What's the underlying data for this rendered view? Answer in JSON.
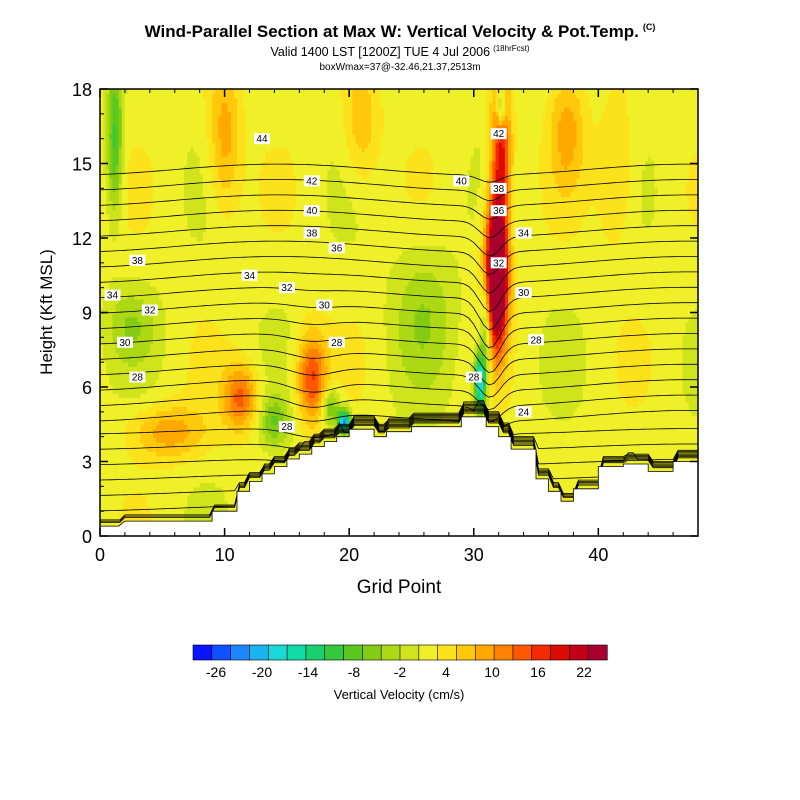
{
  "header": {
    "title": "Wind-Parallel Section at Max W: Vertical Velocity & Pot.Temp.",
    "title_mark": "(C)",
    "subtitle": "Valid 1400 LST [1200Z] TUE 4 Jul 2006",
    "subtitle_mark": "(18hrFcst)",
    "subtitle2": "boxWmax=37@-32.46,21.37,2513m"
  },
  "chart_data": {
    "type": "heatmap",
    "xlabel": "Grid Point",
    "ylabel": "Height (Kft MSL)",
    "xlim": [
      0,
      48
    ],
    "ylim": [
      0,
      18
    ],
    "xticks": [
      0,
      10,
      20,
      30,
      40
    ],
    "yticks": [
      0,
      3,
      6,
      9,
      12,
      15,
      18
    ],
    "terrain": {
      "x": [
        0,
        1.5,
        2,
        9,
        9,
        11,
        11,
        12,
        12,
        13,
        13,
        14,
        14,
        15,
        15,
        16,
        16,
        17,
        17,
        18,
        18,
        19,
        19,
        20,
        20,
        22,
        22,
        23,
        23,
        25,
        25,
        29,
        29,
        31,
        31,
        32,
        32,
        33,
        33,
        35,
        35,
        36,
        36,
        37,
        37,
        38,
        38,
        40,
        40,
        42,
        42,
        44,
        44,
        46,
        46,
        48
      ],
      "y": [
        0.4,
        0.4,
        0.6,
        0.6,
        1.0,
        1.0,
        1.8,
        1.8,
        2.2,
        2.2,
        2.5,
        2.5,
        2.8,
        2.8,
        3.1,
        3.1,
        3.3,
        3.3,
        3.6,
        3.6,
        3.8,
        3.8,
        4.0,
        4.0,
        4.3,
        4.3,
        4.0,
        4.0,
        4.2,
        4.2,
        4.4,
        4.4,
        4.8,
        4.8,
        4.4,
        4.4,
        4.0,
        4.0,
        3.5,
        3.5,
        2.3,
        2.3,
        1.8,
        1.8,
        1.4,
        1.4,
        1.9,
        1.9,
        2.8,
        2.8,
        2.9,
        2.9,
        2.6,
        2.6,
        3.0,
        3.0
      ]
    },
    "w_features": [
      {
        "kind": "updraft",
        "x": 31.8,
        "y": 10.5,
        "sx": 0.9,
        "sy": 2.8,
        "value": 37
      },
      {
        "kind": "updraft",
        "x": 32.2,
        "y": 15.5,
        "sx": 0.8,
        "sy": 3.0,
        "value": 18
      },
      {
        "kind": "updraft",
        "x": 17.0,
        "y": 6.4,
        "sx": 1.2,
        "sy": 1.8,
        "value": 14
      },
      {
        "kind": "updraft",
        "x": 11.3,
        "y": 5.6,
        "sx": 1.4,
        "sy": 1.3,
        "value": 12
      },
      {
        "kind": "updraft",
        "x": 5.5,
        "y": 4.2,
        "sx": 3.0,
        "sy": 1.1,
        "value": 8
      },
      {
        "kind": "updraft",
        "x": 10.0,
        "y": 16.0,
        "sx": 1.3,
        "sy": 3.0,
        "value": 8
      },
      {
        "kind": "updraft",
        "x": 21.0,
        "y": 16.5,
        "sx": 1.4,
        "sy": 2.5,
        "value": 6
      },
      {
        "kind": "updraft",
        "x": 37.5,
        "y": 16.5,
        "sx": 1.4,
        "sy": 2.5,
        "value": 7
      },
      {
        "kind": "updraft",
        "x": 41.5,
        "y": 14.5,
        "sx": 1.5,
        "sy": 3.0,
        "value": 5
      },
      {
        "kind": "downdraft",
        "x": 30.5,
        "y": 6.2,
        "sx": 0.45,
        "sy": 1.2,
        "value": -22
      },
      {
        "kind": "downdraft",
        "x": 31.0,
        "y": 8.5,
        "sx": 0.5,
        "sy": 2.2,
        "value": -12
      },
      {
        "kind": "downdraft",
        "x": 32.2,
        "y": 17.3,
        "sx": 0.4,
        "sy": 1.0,
        "value": -14
      },
      {
        "kind": "downdraft",
        "x": 19.6,
        "y": 4.6,
        "sx": 0.5,
        "sy": 0.5,
        "value": -24
      },
      {
        "kind": "downdraft",
        "x": 18.5,
        "y": 5.2,
        "sx": 0.7,
        "sy": 0.8,
        "value": -10
      },
      {
        "kind": "downdraft",
        "x": 1.2,
        "y": 16.0,
        "sx": 0.6,
        "sy": 3.0,
        "value": -12
      },
      {
        "kind": "downdraft",
        "x": 14.0,
        "y": 4.6,
        "sx": 1.2,
        "sy": 1.0,
        "value": -8
      },
      {
        "kind": "downdraft",
        "x": 2.5,
        "y": 8.5,
        "sx": 2.0,
        "sy": 1.5,
        "value": -5
      },
      {
        "kind": "downdraft",
        "x": 26.0,
        "y": 9.0,
        "sx": 2.5,
        "sy": 3.0,
        "value": -5
      }
    ],
    "theta_levels": [
      22,
      23,
      24,
      25,
      26,
      27,
      28,
      29,
      30,
      31,
      32,
      33,
      34,
      35,
      36,
      37,
      38,
      39,
      40,
      41,
      42,
      43,
      44,
      45,
      46,
      47
    ],
    "theta_labels": [
      {
        "text": "44",
        "x": 13,
        "y": 16.0
      },
      {
        "text": "42",
        "x": 17,
        "y": 14.3
      },
      {
        "text": "40",
        "x": 17,
        "y": 13.1
      },
      {
        "text": "38",
        "x": 17,
        "y": 12.2
      },
      {
        "text": "36",
        "x": 19,
        "y": 11.6
      },
      {
        "text": "34",
        "x": 12,
        "y": 10.5
      },
      {
        "text": "32",
        "x": 15,
        "y": 10.0
      },
      {
        "text": "30",
        "x": 18,
        "y": 9.3
      },
      {
        "text": "28",
        "x": 19,
        "y": 7.8
      },
      {
        "text": "28",
        "x": 15,
        "y": 4.4
      },
      {
        "text": "38",
        "x": 3,
        "y": 11.1
      },
      {
        "text": "34",
        "x": 1,
        "y": 9.7
      },
      {
        "text": "32",
        "x": 4,
        "y": 9.1
      },
      {
        "text": "30",
        "x": 2,
        "y": 7.8
      },
      {
        "text": "28",
        "x": 3,
        "y": 6.4
      },
      {
        "text": "42",
        "x": 32,
        "y": 16.2
      },
      {
        "text": "40",
        "x": 29,
        "y": 14.3
      },
      {
        "text": "38",
        "x": 32,
        "y": 14.0
      },
      {
        "text": "36",
        "x": 32,
        "y": 13.1
      },
      {
        "text": "34",
        "x": 34,
        "y": 12.2
      },
      {
        "text": "32",
        "x": 32,
        "y": 11.0
      },
      {
        "text": "30",
        "x": 34,
        "y": 9.8
      },
      {
        "text": "28",
        "x": 35,
        "y": 7.9
      },
      {
        "text": "28",
        "x": 30,
        "y": 6.4
      },
      {
        "text": "24",
        "x": 34,
        "y": 5.0
      }
    ],
    "colorbar": {
      "label": "Vertical Velocity (cm/s)",
      "colors": [
        "#0a14ff",
        "#1050ff",
        "#1c86ff",
        "#1ab4f0",
        "#1ad8d8",
        "#10dca8",
        "#18d070",
        "#34c83c",
        "#5ac81e",
        "#84cc14",
        "#acd814",
        "#d0e41c",
        "#f0f028",
        "#fbe21a",
        "#ffc80a",
        "#ffa800",
        "#ff8200",
        "#ff5800",
        "#f22c00",
        "#dc0a00",
        "#c00018",
        "#aa0030"
      ],
      "tick_labels": [
        "-26",
        "-20",
        "-14",
        "-8",
        "-2",
        "4",
        "10",
        "16",
        "22"
      ],
      "tick_values": [
        -26,
        -20,
        -14,
        -8,
        -2,
        4,
        10,
        16,
        22
      ],
      "range": [
        -29,
        25
      ]
    }
  }
}
